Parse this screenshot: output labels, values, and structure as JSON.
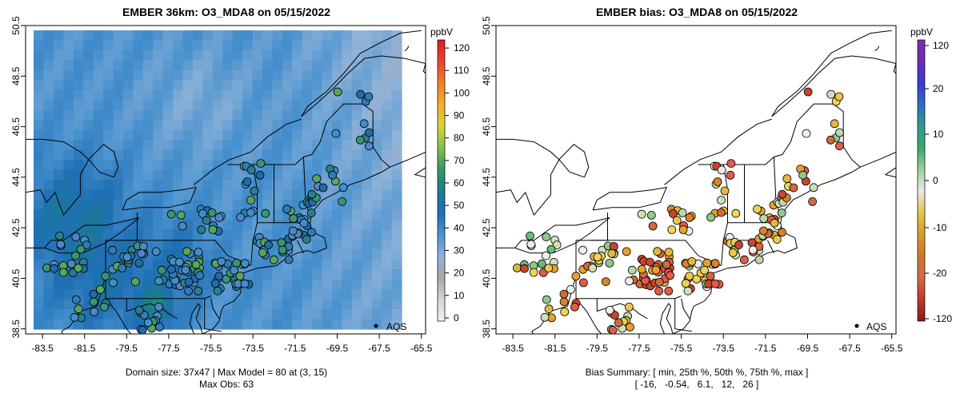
{
  "panels": [
    {
      "id": "left",
      "title": "EMBER 36km: O3_MDA8 on 05/15/2022",
      "x_ticks": [
        "-83.5",
        "-81.5",
        "-79.5",
        "-77.5",
        "-75.5",
        "-73.5",
        "-71.5",
        "-69.5",
        "-67.5",
        "-65.5"
      ],
      "y_ticks": [
        "38.5",
        "40.5",
        "42.5",
        "44.5",
        "46.5",
        "48.5",
        "50.5"
      ],
      "legend_label": "AQS",
      "footer": [
        "Domain size: 37x47 | Max Model = 80 at (3, 15)",
        "Max Obs: 63"
      ],
      "colorbar": {
        "unit": "ppbV",
        "ticks": [
          "0",
          "10",
          "20",
          "30",
          "40",
          "50",
          "60",
          "70",
          "80",
          "90",
          "100",
          "110",
          "120"
        ],
        "range": [
          0,
          125
        ],
        "stops": [
          "#f2f2f2",
          "#d5d5d5",
          "#a8a8a8",
          "#8fb2d8",
          "#4a92cf",
          "#1f6fb5",
          "#1a7c8c",
          "#2e9a66",
          "#80c04e",
          "#d8d43a",
          "#f0b02a",
          "#ee7f24",
          "#e84530",
          "#e41a1c"
        ]
      }
    },
    {
      "id": "right",
      "title": "EMBER bias: O3_MDA8 on 05/15/2022",
      "x_ticks": [
        "-83.5",
        "-81.5",
        "-79.5",
        "-77.5",
        "-75.5",
        "-73.5",
        "-71.5",
        "-69.5",
        "-67.5",
        "-65.5"
      ],
      "y_ticks": [
        "38.5",
        "40.5",
        "42.5",
        "44.5",
        "46.5",
        "48.5",
        "50.5"
      ],
      "legend_label": "AQS",
      "footer": [
        "Bias Summary: [ min, 25th %, 50th %, 75th %, max ]",
        "[ -16,   -0.54,   6.1,   12,   26 ]"
      ],
      "colorbar": {
        "unit": "ppbV",
        "ticks": [
          "120",
          "20",
          "10",
          "0",
          "-10",
          "-20",
          "-120"
        ],
        "stops": [
          "#8b1a1a",
          "#c0392b",
          "#d06a4a",
          "#d1762c",
          "#d99a2a",
          "#e0c64a",
          "#eaeaea",
          "#9fd09a",
          "#3aa86a",
          "#2f9b8f",
          "#2f6fbf",
          "#3a3ad0",
          "#6a2db5",
          "#7b2fa8"
        ]
      }
    }
  ],
  "chart_data": [
    {
      "type": "heatmap",
      "title": "EMBER 36km: O3_MDA8 on 05/15/2022",
      "x_range": [
        -84.3,
        -65.3
      ],
      "y_range": [
        38.3,
        50.5
      ],
      "field_units": "ppbV",
      "field_range_ppbV": [
        26,
        80
      ],
      "overlay_points_label": "AQS",
      "obs_max_ppbV": 63,
      "model_max_ppbV": 80,
      "domain_size": "37x47"
    },
    {
      "type": "scatter",
      "title": "EMBER bias: O3_MDA8 on 05/15/2022",
      "x_range": [
        -84.3,
        -65.3
      ],
      "y_range": [
        38.3,
        50.5
      ],
      "value_units": "ppbV",
      "bias_summary": {
        "min": -16,
        "p25": -0.54,
        "p50": 6.1,
        "p75": 12,
        "max": 26
      },
      "overlay_points_label": "AQS"
    }
  ]
}
